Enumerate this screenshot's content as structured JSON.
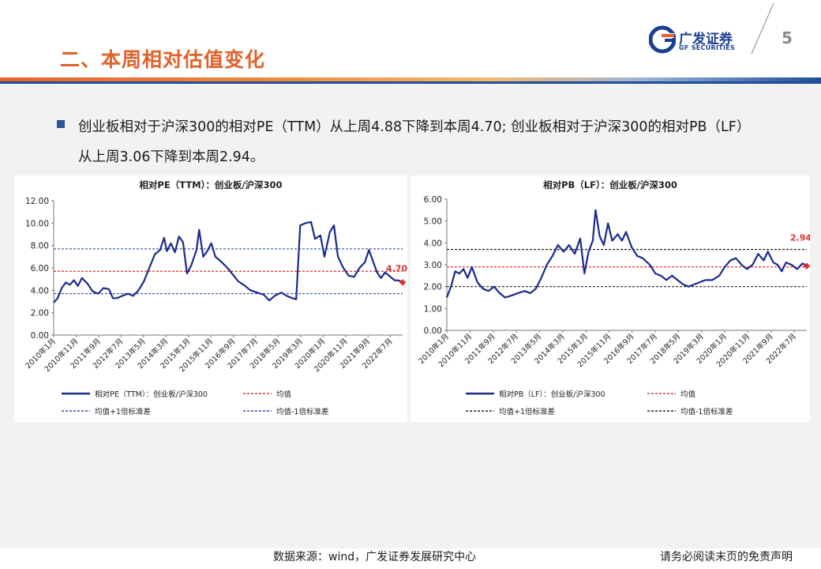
{
  "page": {
    "title": "二、本周相对估值变化",
    "page_number": "5",
    "logo_cn": "广发证券",
    "logo_en": "GF SECURITIES",
    "summary": "创业板相对于沪深300的相对PE（TTM）从上周4.88下降到本周4.70; 创业板相对于沪深300的相对PB（LF）从上周3.06下降到本周2.94。",
    "footer_source": "数据来源：wind，广发证券发展研究中心",
    "footer_disclaimer": "请务必阅读末页的免责声明",
    "colors": {
      "title": "#e0622a",
      "brand_blue": "#1b3f8f",
      "series": "#1a2a8c",
      "mean": "#e03030"
    }
  },
  "chart_data": [
    {
      "type": "line",
      "title": "相对PE（TTM）：创业板/沪深300",
      "ylim": [
        0,
        12
      ],
      "yticks": [
        "0.00",
        "2.00",
        "4.00",
        "6.00",
        "8.00",
        "10.00",
        "12.00"
      ],
      "xticks": [
        "2010年1月",
        "2010年11月",
        "2011年9月",
        "2012年7月",
        "2013年5月",
        "2014年3月",
        "2015年1月",
        "2015年11月",
        "2016年9月",
        "2017年7月",
        "2018年5月",
        "2019年3月",
        "2020年1月",
        "2020年11月",
        "2021年9月",
        "2022年7月"
      ],
      "x_range": [
        2010.0,
        2022.95
      ],
      "series": [
        {
          "name": "相对PE（TTM）：创业板/沪深300",
          "points": [
            [
              2010.0,
              2.9
            ],
            [
              2010.15,
              3.3
            ],
            [
              2010.3,
              4.2
            ],
            [
              2010.45,
              4.7
            ],
            [
              2010.6,
              4.5
            ],
            [
              2010.75,
              4.9
            ],
            [
              2010.9,
              4.4
            ],
            [
              2011.05,
              5.1
            ],
            [
              2011.25,
              4.6
            ],
            [
              2011.45,
              3.9
            ],
            [
              2011.65,
              3.7
            ],
            [
              2011.85,
              4.2
            ],
            [
              2012.05,
              4.1
            ],
            [
              2012.2,
              3.3
            ],
            [
              2012.35,
              3.3
            ],
            [
              2012.55,
              3.5
            ],
            [
              2012.75,
              3.7
            ],
            [
              2012.95,
              3.5
            ],
            [
              2013.15,
              4.0
            ],
            [
              2013.35,
              4.8
            ],
            [
              2013.55,
              6.0
            ],
            [
              2013.75,
              7.2
            ],
            [
              2013.95,
              7.6
            ],
            [
              2014.1,
              8.7
            ],
            [
              2014.2,
              7.5
            ],
            [
              2014.35,
              8.2
            ],
            [
              2014.5,
              7.4
            ],
            [
              2014.65,
              8.8
            ],
            [
              2014.8,
              8.3
            ],
            [
              2014.95,
              5.5
            ],
            [
              2015.1,
              6.2
            ],
            [
              2015.3,
              7.6
            ],
            [
              2015.4,
              9.4
            ],
            [
              2015.55,
              7.0
            ],
            [
              2015.7,
              7.5
            ],
            [
              2015.85,
              8.2
            ],
            [
              2016.0,
              7.0
            ],
            [
              2016.2,
              6.6
            ],
            [
              2016.45,
              6.0
            ],
            [
              2016.65,
              5.4
            ],
            [
              2016.85,
              4.8
            ],
            [
              2017.05,
              4.5
            ],
            [
              2017.3,
              4.0
            ],
            [
              2017.55,
              3.8
            ],
            [
              2017.8,
              3.6
            ],
            [
              2018.0,
              3.1
            ],
            [
              2018.2,
              3.5
            ],
            [
              2018.45,
              3.8
            ],
            [
              2018.65,
              3.5
            ],
            [
              2018.85,
              3.3
            ],
            [
              2019.0,
              3.2
            ],
            [
              2019.15,
              9.8
            ],
            [
              2019.35,
              10.0
            ],
            [
              2019.55,
              10.1
            ],
            [
              2019.7,
              8.6
            ],
            [
              2019.9,
              8.9
            ],
            [
              2020.05,
              7.0
            ],
            [
              2020.25,
              9.2
            ],
            [
              2020.4,
              9.8
            ],
            [
              2020.55,
              7.0
            ],
            [
              2020.75,
              6.0
            ],
            [
              2020.95,
              5.3
            ],
            [
              2021.15,
              5.2
            ],
            [
              2021.35,
              6.0
            ],
            [
              2021.55,
              6.5
            ],
            [
              2021.7,
              7.6
            ],
            [
              2021.85,
              6.6
            ],
            [
              2022.0,
              5.6
            ],
            [
              2022.15,
              5.1
            ],
            [
              2022.3,
              5.6
            ],
            [
              2022.5,
              5.2
            ],
            [
              2022.65,
              4.9
            ],
            [
              2022.8,
              4.88
            ],
            [
              2022.95,
              4.7
            ]
          ]
        }
      ],
      "mean": 5.7,
      "plus_1sd": 7.7,
      "minus_1sd": 3.7,
      "last_label": "4.70",
      "legend": [
        "相对PE（TTM）：创业板/沪深300",
        "均值",
        "均值+1倍标准差",
        "均值-1倍标准差"
      ],
      "line_styles": {
        "series": "#1a2a8c",
        "mean": "#e03030",
        "plus_1sd": "#2c4aa3",
        "minus_1sd": "#2c4aa3"
      }
    },
    {
      "type": "line",
      "title": "相对PB（LF）：创业板/沪深300",
      "ylim": [
        0,
        6
      ],
      "yticks": [
        "0.00",
        "1.00",
        "2.00",
        "3.00",
        "4.00",
        "5.00",
        "6.00"
      ],
      "xticks": [
        "2010年1月",
        "2010年11月",
        "2011年9月",
        "2012年7月",
        "2013年5月",
        "2014年3月",
        "2015年1月",
        "2015年11月",
        "2016年9月",
        "2017年7月",
        "2018年5月",
        "2019年3月",
        "2020年1月",
        "2020年11月",
        "2021年9月",
        "2022年7月"
      ],
      "x_range": [
        2010.0,
        2022.95
      ],
      "series": [
        {
          "name": "相对PB（LF）：创业板/沪深300",
          "points": [
            [
              2010.0,
              1.5
            ],
            [
              2010.15,
              2.0
            ],
            [
              2010.3,
              2.7
            ],
            [
              2010.45,
              2.6
            ],
            [
              2010.6,
              2.8
            ],
            [
              2010.75,
              2.4
            ],
            [
              2010.9,
              2.9
            ],
            [
              2011.1,
              2.2
            ],
            [
              2011.3,
              1.9
            ],
            [
              2011.5,
              1.8
            ],
            [
              2011.7,
              2.0
            ],
            [
              2011.9,
              1.7
            ],
            [
              2012.1,
              1.5
            ],
            [
              2012.35,
              1.6
            ],
            [
              2012.55,
              1.7
            ],
            [
              2012.8,
              1.8
            ],
            [
              2013.0,
              1.7
            ],
            [
              2013.2,
              1.9
            ],
            [
              2013.4,
              2.4
            ],
            [
              2013.6,
              3.0
            ],
            [
              2013.8,
              3.4
            ],
            [
              2014.0,
              3.9
            ],
            [
              2014.2,
              3.6
            ],
            [
              2014.4,
              3.9
            ],
            [
              2014.6,
              3.5
            ],
            [
              2014.8,
              4.2
            ],
            [
              2014.95,
              2.6
            ],
            [
              2015.1,
              3.6
            ],
            [
              2015.25,
              4.1
            ],
            [
              2015.35,
              5.5
            ],
            [
              2015.5,
              4.3
            ],
            [
              2015.65,
              3.9
            ],
            [
              2015.8,
              4.9
            ],
            [
              2015.95,
              4.1
            ],
            [
              2016.15,
              4.4
            ],
            [
              2016.3,
              4.1
            ],
            [
              2016.45,
              4.5
            ],
            [
              2016.65,
              3.8
            ],
            [
              2016.85,
              3.4
            ],
            [
              2017.05,
              3.3
            ],
            [
              2017.3,
              3.0
            ],
            [
              2017.5,
              2.6
            ],
            [
              2017.7,
              2.5
            ],
            [
              2017.9,
              2.3
            ],
            [
              2018.1,
              2.5
            ],
            [
              2018.3,
              2.3
            ],
            [
              2018.5,
              2.1
            ],
            [
              2018.7,
              2.0
            ],
            [
              2018.9,
              2.1
            ],
            [
              2019.1,
              2.2
            ],
            [
              2019.3,
              2.3
            ],
            [
              2019.55,
              2.3
            ],
            [
              2019.8,
              2.5
            ],
            [
              2020.0,
              2.9
            ],
            [
              2020.2,
              3.2
            ],
            [
              2020.4,
              3.3
            ],
            [
              2020.6,
              3.0
            ],
            [
              2020.8,
              2.8
            ],
            [
              2021.0,
              3.0
            ],
            [
              2021.2,
              3.5
            ],
            [
              2021.4,
              3.2
            ],
            [
              2021.55,
              3.6
            ],
            [
              2021.75,
              3.1
            ],
            [
              2021.9,
              3.0
            ],
            [
              2022.05,
              2.7
            ],
            [
              2022.2,
              3.1
            ],
            [
              2022.4,
              3.0
            ],
            [
              2022.6,
              2.8
            ],
            [
              2022.8,
              3.06
            ],
            [
              2022.95,
              2.94
            ]
          ]
        }
      ],
      "mean": 2.9,
      "plus_1sd": 3.7,
      "minus_1sd": 2.0,
      "last_label": "2.94",
      "legend": [
        "相对PB（LF）：创业板/沪深300",
        "均值",
        "均值+1倍标准差",
        "均值-1倍标准差"
      ],
      "line_styles": {
        "series": "#1a2a8c",
        "mean": "#e03030",
        "plus_1sd": "#222222",
        "minus_1sd": "#222222"
      }
    }
  ]
}
